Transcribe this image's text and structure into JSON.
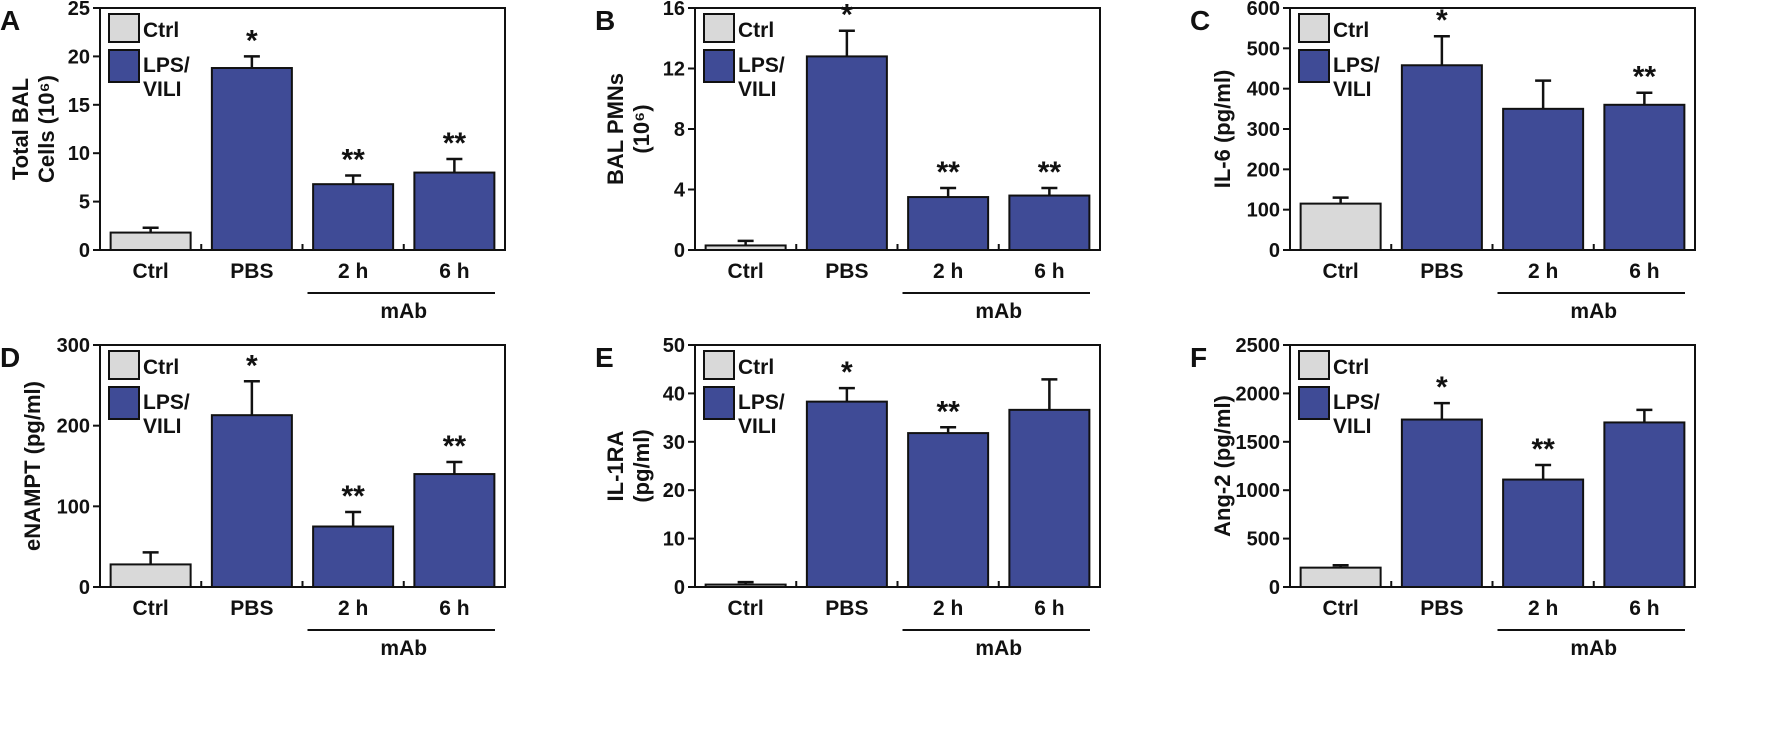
{
  "colors": {
    "ctrl": "#d9d9d9",
    "lps": "#3f4b96",
    "axis": "#111111"
  },
  "legend": [
    {
      "label": "Ctrl"
    },
    {
      "label_line1": "LPS/",
      "label_line2": "VILI"
    }
  ],
  "group_label": "mAb",
  "chart_data": [
    {
      "panel": "A",
      "type": "bar",
      "ylabel": [
        "Total BAL",
        "Cells (10⁶)"
      ],
      "ylim": [
        0,
        25
      ],
      "yticks": [
        0,
        5,
        10,
        15,
        20,
        25
      ],
      "categories": [
        "Ctrl",
        "PBS",
        "2 h",
        "6 h"
      ],
      "values": [
        1.8,
        18.8,
        6.8,
        8.0
      ],
      "errors": [
        0.5,
        1.2,
        0.9,
        1.4
      ],
      "annotations": [
        "",
        "*",
        "**",
        "**"
      ]
    },
    {
      "panel": "B",
      "type": "bar",
      "ylabel": [
        "BAL PMNs",
        "(10⁶)"
      ],
      "ylim": [
        0,
        16
      ],
      "yticks": [
        0,
        4,
        8,
        12,
        16
      ],
      "categories": [
        "Ctrl",
        "PBS",
        "2 h",
        "6 h"
      ],
      "values": [
        0.3,
        12.8,
        3.5,
        3.6
      ],
      "errors": [
        0.3,
        1.7,
        0.6,
        0.5
      ],
      "annotations": [
        "",
        "*",
        "**",
        "**"
      ]
    },
    {
      "panel": "C",
      "type": "bar",
      "ylabel": [
        "IL-6 (pg/ml)"
      ],
      "ylim": [
        0,
        600
      ],
      "yticks": [
        0,
        100,
        200,
        300,
        400,
        500,
        600
      ],
      "categories": [
        "Ctrl",
        "PBS",
        "2 h",
        "6 h"
      ],
      "values": [
        115,
        458,
        350,
        360
      ],
      "errors": [
        15,
        72,
        70,
        30
      ],
      "annotations": [
        "",
        "*",
        "",
        "**"
      ]
    },
    {
      "panel": "D",
      "type": "bar",
      "ylabel": [
        "eNAMPT (pg/ml)"
      ],
      "ylim": [
        0,
        300
      ],
      "yticks": [
        0,
        100,
        200,
        300
      ],
      "categories": [
        "Ctrl",
        "PBS",
        "2 h",
        "6 h"
      ],
      "values": [
        28,
        213,
        75,
        140
      ],
      "errors": [
        15,
        42,
        18,
        15
      ],
      "annotations": [
        "",
        "*",
        "**",
        "**"
      ]
    },
    {
      "panel": "E",
      "type": "bar",
      "ylabel": [
        "IL-1RA",
        "(pg/ml)"
      ],
      "ylim": [
        0,
        50
      ],
      "yticks": [
        0,
        10,
        20,
        30,
        40,
        50
      ],
      "categories": [
        "Ctrl",
        "PBS",
        "2 h",
        "6 h"
      ],
      "values": [
        0.5,
        38.3,
        31.8,
        36.6
      ],
      "errors": [
        0.5,
        2.8,
        1.2,
        6.3
      ],
      "annotations": [
        "",
        "*",
        "**",
        ""
      ]
    },
    {
      "panel": "F",
      "type": "bar",
      "ylabel": [
        "Ang-2 (pg/ml)"
      ],
      "ylim": [
        0,
        2500
      ],
      "yticks": [
        0,
        500,
        1000,
        1500,
        2000,
        2500
      ],
      "categories": [
        "Ctrl",
        "PBS",
        "2 h",
        "6 h"
      ],
      "values": [
        200,
        1730,
        1110,
        1700
      ],
      "errors": [
        25,
        170,
        150,
        130
      ],
      "annotations": [
        "",
        "*",
        "**",
        ""
      ]
    }
  ]
}
